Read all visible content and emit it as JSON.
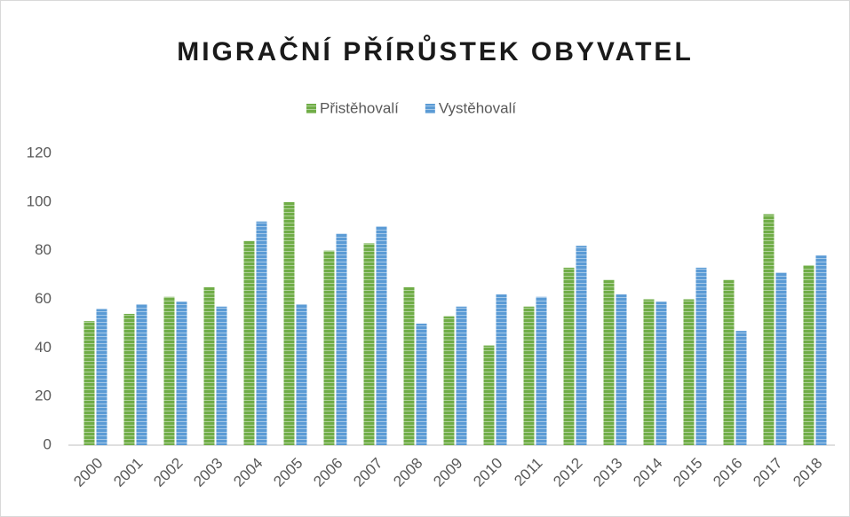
{
  "chart_data": {
    "type": "bar",
    "title": "MIGRAČNÍ PŘÍRŮSTEK OBYVATEL",
    "categories": [
      "2000",
      "2001",
      "2002",
      "2003",
      "2004",
      "2005",
      "2006",
      "2007",
      "2008",
      "2009",
      "2010",
      "2011",
      "2012",
      "2013",
      "2014",
      "2015",
      "2016",
      "2017",
      "2018"
    ],
    "series": [
      {
        "name": "Přistěhovalí",
        "color": "#70ad47",
        "values": [
          51,
          54,
          61,
          65,
          84,
          100,
          80,
          83,
          65,
          53,
          41,
          57,
          73,
          68,
          60,
          60,
          68,
          95,
          74
        ]
      },
      {
        "name": "Vystěhovalí",
        "color": "#5b9bd5",
        "values": [
          56,
          58,
          59,
          57,
          92,
          58,
          87,
          90,
          50,
          57,
          62,
          61,
          82,
          62,
          59,
          73,
          47,
          71,
          78
        ]
      }
    ],
    "ylim": [
      0,
      120
    ],
    "yticks": [
      0,
      20,
      40,
      60,
      80,
      100,
      120
    ],
    "grid": false,
    "legend": "top"
  }
}
